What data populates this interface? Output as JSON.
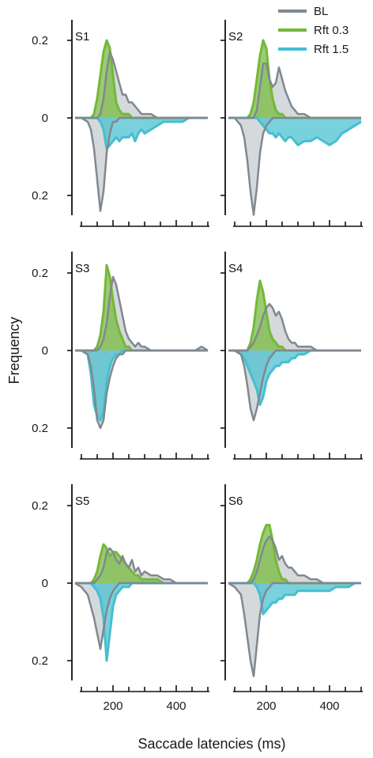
{
  "chart_data": {
    "type": "area",
    "xlabel": "Saccade latencies (ms)",
    "ylabel": "Frequency",
    "xlim": [
      70,
      510
    ],
    "x_ticks": [
      200,
      400
    ],
    "x_tick_labels": [
      "200",
      "400"
    ],
    "ylim_up": [
      0,
      0.22
    ],
    "ylim_down": [
      0,
      0.22
    ],
    "y_ticks": [
      0.2,
      0,
      0.2
    ],
    "y_tick_labels": [
      "0.2",
      "0",
      "0.2"
    ],
    "upper_half": [
      "BL",
      "Rft 0.3"
    ],
    "lower_half": [
      "BL",
      "Rft 1.5"
    ],
    "legend": [
      {
        "name": "BL",
        "color": "#808890"
      },
      {
        "name": "Rft 0.3",
        "color": "#74b83a"
      },
      {
        "name": "Rft 1.5",
        "color": "#45bfd0"
      }
    ],
    "x": [
      80,
      100,
      120,
      130,
      140,
      150,
      160,
      170,
      180,
      190,
      200,
      210,
      220,
      230,
      240,
      250,
      260,
      270,
      280,
      290,
      300,
      320,
      340,
      360,
      380,
      400,
      420,
      440,
      460,
      480,
      500
    ],
    "panels": [
      {
        "label": "S1",
        "BL_up": [
          0,
          0,
          0,
          0,
          0,
          0,
          0.01,
          0.05,
          0.12,
          0.17,
          0.15,
          0.12,
          0.09,
          0.06,
          0.06,
          0.04,
          0.04,
          0.03,
          0.02,
          0.01,
          0.01,
          0.01,
          0,
          0,
          0,
          0,
          0,
          0,
          0,
          0,
          0
        ],
        "rft_up": [
          0,
          0,
          0,
          0,
          0.01,
          0.05,
          0.11,
          0.17,
          0.2,
          0.18,
          0.11,
          0.04,
          0.02,
          0.01,
          0.01,
          0.01,
          0,
          0,
          0,
          0,
          0,
          0,
          0,
          0,
          0,
          0,
          0,
          0,
          0,
          0,
          0
        ],
        "BL_down": [
          0,
          0,
          0.01,
          0.03,
          0.08,
          0.16,
          0.24,
          0.19,
          0.09,
          0.04,
          0.01,
          0.01,
          0,
          0,
          0,
          0,
          0,
          0,
          0,
          0,
          0,
          0,
          0,
          0,
          0,
          0,
          0,
          0,
          0,
          0,
          0
        ],
        "rft_down": [
          0,
          0,
          0,
          0,
          0,
          0,
          0.01,
          0.03,
          0.08,
          0.07,
          0.06,
          0.05,
          0.06,
          0.05,
          0.05,
          0.05,
          0.04,
          0.06,
          0.04,
          0.03,
          0.04,
          0.03,
          0.02,
          0.01,
          0.01,
          0.01,
          0.01,
          0,
          0,
          0,
          0
        ]
      },
      {
        "label": "S2",
        "BL_up": [
          0,
          0,
          0,
          0,
          0,
          0,
          0,
          0.02,
          0.08,
          0.14,
          0.14,
          0.1,
          0.08,
          0.09,
          0.13,
          0.1,
          0.07,
          0.05,
          0.03,
          0.02,
          0.01,
          0.01,
          0,
          0,
          0,
          0,
          0,
          0,
          0,
          0,
          0
        ],
        "rft_up": [
          0,
          0,
          0,
          0,
          0,
          0.01,
          0.04,
          0.1,
          0.16,
          0.2,
          0.18,
          0.1,
          0.05,
          0.02,
          0.01,
          0.01,
          0,
          0,
          0,
          0,
          0,
          0,
          0,
          0,
          0,
          0,
          0,
          0,
          0,
          0,
          0
        ],
        "BL_down": [
          0,
          0,
          0.02,
          0.05,
          0.11,
          0.19,
          0.25,
          0.18,
          0.09,
          0.04,
          0.02,
          0.01,
          0,
          0,
          0,
          0,
          0,
          0,
          0,
          0,
          0,
          0,
          0,
          0,
          0,
          0,
          0,
          0,
          0,
          0,
          0
        ],
        "rft_down": [
          0,
          0,
          0,
          0,
          0,
          0,
          0,
          0,
          0.01,
          0.02,
          0.03,
          0.04,
          0.04,
          0.05,
          0.04,
          0.05,
          0.06,
          0.05,
          0.05,
          0.06,
          0.07,
          0.06,
          0.06,
          0.05,
          0.06,
          0.07,
          0.06,
          0.04,
          0.03,
          0.02,
          0.01
        ]
      },
      {
        "label": "S3",
        "BL_up": [
          0,
          0,
          0,
          0,
          0,
          0,
          0.01,
          0.03,
          0.07,
          0.14,
          0.19,
          0.17,
          0.13,
          0.09,
          0.05,
          0.03,
          0.02,
          0.01,
          0.02,
          0.01,
          0.01,
          0,
          0,
          0,
          0,
          0,
          0,
          0,
          0,
          0.01,
          0
        ],
        "rft_up": [
          0,
          0,
          0,
          0,
          0,
          0.01,
          0.04,
          0.1,
          0.22,
          0.19,
          0.13,
          0.08,
          0.05,
          0.03,
          0.01,
          0.01,
          0,
          0,
          0,
          0,
          0,
          0,
          0,
          0,
          0,
          0,
          0,
          0,
          0,
          0,
          0
        ],
        "BL_down": [
          0,
          0,
          0.01,
          0.04,
          0.1,
          0.18,
          0.2,
          0.18,
          0.11,
          0.07,
          0.04,
          0.02,
          0.01,
          0.01,
          0,
          0,
          0,
          0,
          0,
          0,
          0,
          0,
          0,
          0,
          0,
          0,
          0,
          0,
          0,
          0,
          0
        ],
        "rft_down": [
          0,
          0,
          0.01,
          0.06,
          0.14,
          0.17,
          0.18,
          0.16,
          0.08,
          0.04,
          0.02,
          0.01,
          0.01,
          0,
          0,
          0,
          0,
          0,
          0,
          0,
          0,
          0,
          0,
          0,
          0,
          0,
          0,
          0,
          0,
          0,
          0
        ]
      },
      {
        "label": "S4",
        "BL_up": [
          0,
          0,
          0,
          0,
          0,
          0.01,
          0.02,
          0.04,
          0.06,
          0.09,
          0.11,
          0.12,
          0.11,
          0.09,
          0.1,
          0.08,
          0.05,
          0.03,
          0.02,
          0.02,
          0.01,
          0.01,
          0.01,
          0,
          0,
          0,
          0,
          0,
          0,
          0,
          0
        ],
        "rft_up": [
          0,
          0,
          0,
          0,
          0,
          0.02,
          0.06,
          0.13,
          0.18,
          0.15,
          0.1,
          0.05,
          0.03,
          0.02,
          0.01,
          0.01,
          0,
          0,
          0,
          0,
          0,
          0,
          0,
          0,
          0,
          0,
          0,
          0,
          0,
          0,
          0
        ],
        "BL_down": [
          0,
          0,
          0.01,
          0.04,
          0.09,
          0.15,
          0.18,
          0.15,
          0.11,
          0.07,
          0.04,
          0.02,
          0.01,
          0,
          0,
          0,
          0,
          0,
          0,
          0,
          0,
          0,
          0,
          0,
          0,
          0,
          0,
          0,
          0,
          0,
          0
        ],
        "rft_down": [
          0,
          0,
          0.01,
          0.02,
          0.04,
          0.06,
          0.08,
          0.1,
          0.14,
          0.12,
          0.08,
          0.06,
          0.05,
          0.04,
          0.04,
          0.03,
          0.03,
          0.03,
          0.02,
          0.02,
          0.01,
          0.01,
          0,
          0,
          0,
          0,
          0,
          0,
          0,
          0,
          0
        ]
      },
      {
        "label": "S5",
        "BL_up": [
          0,
          0,
          0,
          0,
          0,
          0.01,
          0.02,
          0.04,
          0.08,
          0.09,
          0.08,
          0.06,
          0.05,
          0.07,
          0.05,
          0.04,
          0.06,
          0.03,
          0.04,
          0.02,
          0.03,
          0.02,
          0.02,
          0.01,
          0.01,
          0,
          0,
          0,
          0,
          0,
          0
        ],
        "rft_up": [
          0,
          0,
          0,
          0,
          0.01,
          0.03,
          0.07,
          0.1,
          0.09,
          0.07,
          0.08,
          0.08,
          0.07,
          0.06,
          0.05,
          0.04,
          0.03,
          0.02,
          0.02,
          0.01,
          0.01,
          0.01,
          0.01,
          0,
          0,
          0,
          0,
          0,
          0,
          0,
          0
        ],
        "BL_down": [
          0,
          0.01,
          0.03,
          0.06,
          0.09,
          0.13,
          0.17,
          0.12,
          0.07,
          0.04,
          0.02,
          0.01,
          0,
          0,
          0,
          0,
          0,
          0,
          0,
          0,
          0,
          0,
          0,
          0,
          0,
          0,
          0,
          0,
          0,
          0,
          0
        ],
        "rft_down": [
          0,
          0,
          0,
          0,
          0.01,
          0.02,
          0.04,
          0.09,
          0.2,
          0.13,
          0.06,
          0.03,
          0.02,
          0.01,
          0.01,
          0.01,
          0,
          0,
          0,
          0,
          0,
          0,
          0,
          0,
          0,
          0,
          0,
          0,
          0,
          0,
          0
        ]
      },
      {
        "label": "S6",
        "BL_up": [
          0,
          0,
          0,
          0,
          0,
          0,
          0.01,
          0.03,
          0.06,
          0.09,
          0.11,
          0.12,
          0.11,
          0.09,
          0.06,
          0.07,
          0.05,
          0.04,
          0.04,
          0.03,
          0.02,
          0.02,
          0.01,
          0.01,
          0,
          0,
          0,
          0,
          0,
          0,
          0
        ],
        "rft_up": [
          0,
          0,
          0,
          0,
          0,
          0.01,
          0.03,
          0.06,
          0.1,
          0.13,
          0.15,
          0.15,
          0.11,
          0.06,
          0.03,
          0.01,
          0.01,
          0,
          0,
          0,
          0,
          0,
          0,
          0,
          0,
          0,
          0,
          0,
          0,
          0,
          0
        ],
        "BL_down": [
          0,
          0.01,
          0.03,
          0.08,
          0.14,
          0.2,
          0.24,
          0.16,
          0.08,
          0.04,
          0.02,
          0.01,
          0,
          0,
          0,
          0,
          0,
          0,
          0,
          0,
          0,
          0,
          0,
          0,
          0,
          0,
          0,
          0,
          0,
          0,
          0
        ],
        "rft_down": [
          0,
          0,
          0,
          0,
          0,
          0,
          0,
          0.01,
          0.03,
          0.08,
          0.07,
          0.06,
          0.05,
          0.05,
          0.04,
          0.04,
          0.03,
          0.03,
          0.03,
          0.03,
          0.02,
          0.02,
          0.02,
          0.02,
          0.02,
          0.02,
          0.01,
          0.01,
          0.01,
          0,
          0
        ]
      }
    ]
  }
}
